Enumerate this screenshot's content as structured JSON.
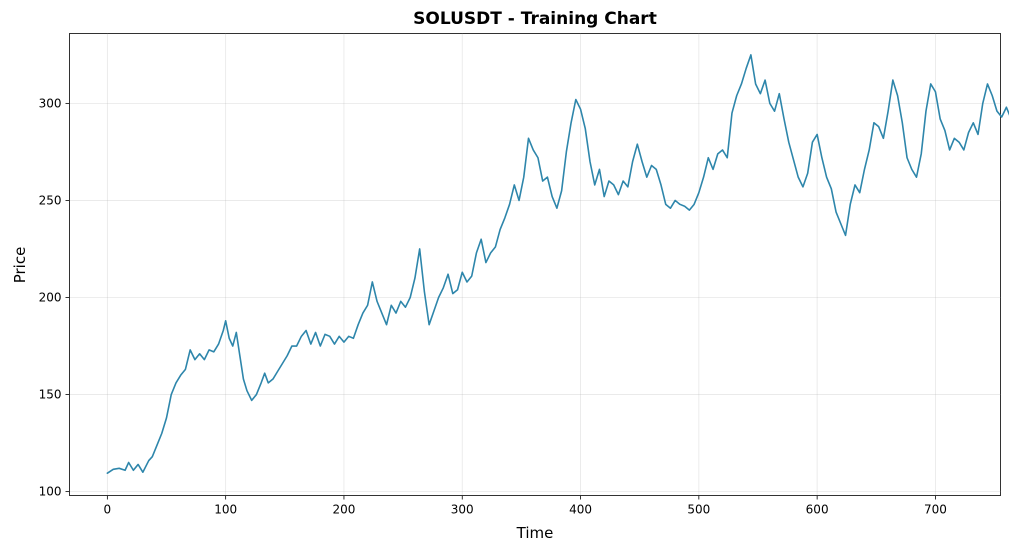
{
  "chart_data": {
    "type": "line",
    "title": "SOLUSDT - Training Chart",
    "xlabel": "Time",
    "ylabel": "Price",
    "xlim": [
      -32,
      755
    ],
    "ylim": [
      98,
      336
    ],
    "xticks": [
      0,
      100,
      200,
      300,
      400,
      500,
      600,
      700
    ],
    "yticks": [
      100,
      150,
      200,
      250,
      300
    ],
    "grid": true,
    "line_color": "#2e86ab",
    "series": [
      {
        "values": [
          [
            0,
            109.5
          ],
          [
            5,
            111.5
          ],
          [
            10,
            112
          ],
          [
            15,
            111
          ],
          [
            18,
            115
          ],
          [
            22,
            111
          ],
          [
            26,
            114
          ],
          [
            30,
            110
          ],
          [
            35,
            116
          ],
          [
            38,
            118
          ],
          [
            42,
            124
          ],
          [
            46,
            130
          ],
          [
            50,
            138
          ],
          [
            54,
            150
          ],
          [
            58,
            156
          ],
          [
            62,
            160
          ],
          [
            66,
            163
          ],
          [
            70,
            173
          ],
          [
            74,
            168
          ],
          [
            78,
            171
          ],
          [
            82,
            168
          ],
          [
            86,
            173
          ],
          [
            90,
            172
          ],
          [
            94,
            176
          ],
          [
            98,
            183
          ],
          [
            100,
            188
          ],
          [
            103,
            179
          ],
          [
            106,
            175
          ],
          [
            109,
            182
          ],
          [
            112,
            170
          ],
          [
            115,
            158
          ],
          [
            118,
            152
          ],
          [
            122,
            147
          ],
          [
            126,
            150
          ],
          [
            130,
            156
          ],
          [
            133,
            161
          ],
          [
            136,
            156
          ],
          [
            140,
            158
          ],
          [
            144,
            162
          ],
          [
            148,
            166
          ],
          [
            152,
            170
          ],
          [
            156,
            175
          ],
          [
            160,
            175
          ],
          [
            164,
            180
          ],
          [
            168,
            183
          ],
          [
            172,
            176
          ],
          [
            176,
            182
          ],
          [
            180,
            175
          ],
          [
            184,
            181
          ],
          [
            188,
            180
          ],
          [
            192,
            176
          ],
          [
            196,
            180
          ],
          [
            200,
            177
          ],
          [
            204,
            180
          ],
          [
            208,
            179
          ],
          [
            212,
            186
          ],
          [
            216,
            192
          ],
          [
            220,
            196
          ],
          [
            224,
            208
          ],
          [
            228,
            198
          ],
          [
            232,
            192
          ],
          [
            236,
            186
          ],
          [
            240,
            196
          ],
          [
            244,
            192
          ],
          [
            248,
            198
          ],
          [
            252,
            195
          ],
          [
            256,
            200
          ],
          [
            260,
            210
          ],
          [
            264,
            225
          ],
          [
            268,
            203
          ],
          [
            272,
            186
          ],
          [
            276,
            193
          ],
          [
            280,
            200
          ],
          [
            284,
            205
          ],
          [
            288,
            212
          ],
          [
            292,
            202
          ],
          [
            296,
            204
          ],
          [
            300,
            213
          ],
          [
            304,
            208
          ],
          [
            308,
            211
          ],
          [
            312,
            223
          ],
          [
            316,
            230
          ],
          [
            320,
            218
          ],
          [
            324,
            223
          ],
          [
            328,
            226
          ],
          [
            332,
            235
          ],
          [
            336,
            241
          ],
          [
            340,
            248
          ],
          [
            344,
            258
          ],
          [
            348,
            250
          ],
          [
            352,
            262
          ],
          [
            356,
            282
          ],
          [
            360,
            276
          ],
          [
            364,
            272
          ],
          [
            368,
            260
          ],
          [
            372,
            262
          ],
          [
            376,
            252
          ],
          [
            380,
            246
          ],
          [
            384,
            255
          ],
          [
            388,
            275
          ],
          [
            392,
            290
          ],
          [
            396,
            302
          ],
          [
            400,
            297
          ],
          [
            404,
            287
          ],
          [
            408,
            270
          ],
          [
            412,
            258
          ],
          [
            416,
            266
          ],
          [
            420,
            252
          ],
          [
            424,
            260
          ],
          [
            428,
            258
          ],
          [
            432,
            253
          ],
          [
            436,
            260
          ],
          [
            440,
            257
          ],
          [
            444,
            270
          ],
          [
            448,
            279
          ],
          [
            452,
            270
          ],
          [
            456,
            262
          ],
          [
            460,
            268
          ],
          [
            464,
            266
          ],
          [
            468,
            258
          ],
          [
            472,
            248
          ],
          [
            476,
            246
          ],
          [
            480,
            250
          ],
          [
            484,
            248
          ],
          [
            488,
            247
          ],
          [
            492,
            245
          ],
          [
            496,
            248
          ],
          [
            500,
            254
          ],
          [
            504,
            262
          ],
          [
            508,
            272
          ],
          [
            512,
            266
          ],
          [
            516,
            274
          ],
          [
            520,
            276
          ],
          [
            524,
            272
          ],
          [
            528,
            295
          ],
          [
            532,
            304
          ],
          [
            536,
            310
          ],
          [
            540,
            318
          ],
          [
            544,
            325
          ],
          [
            548,
            310
          ],
          [
            552,
            305
          ],
          [
            556,
            312
          ],
          [
            560,
            300
          ],
          [
            564,
            296
          ],
          [
            568,
            305
          ],
          [
            572,
            292
          ],
          [
            576,
            280
          ],
          [
            580,
            271
          ],
          [
            584,
            262
          ],
          [
            588,
            257
          ],
          [
            592,
            264
          ],
          [
            596,
            280
          ],
          [
            600,
            284
          ],
          [
            604,
            272
          ],
          [
            608,
            262
          ],
          [
            612,
            256
          ],
          [
            616,
            244
          ],
          [
            620,
            238
          ],
          [
            624,
            232
          ],
          [
            628,
            248
          ],
          [
            632,
            258
          ],
          [
            636,
            254
          ],
          [
            640,
            266
          ],
          [
            644,
            276
          ],
          [
            648,
            290
          ],
          [
            652,
            288
          ],
          [
            656,
            282
          ],
          [
            660,
            296
          ],
          [
            664,
            312
          ],
          [
            668,
            304
          ],
          [
            672,
            290
          ],
          [
            676,
            272
          ],
          [
            680,
            266
          ],
          [
            684,
            262
          ],
          [
            688,
            274
          ],
          [
            692,
            296
          ],
          [
            696,
            310
          ],
          [
            700,
            306
          ],
          [
            704,
            292
          ],
          [
            708,
            286
          ],
          [
            712,
            276
          ],
          [
            716,
            282
          ],
          [
            720,
            280
          ],
          [
            724,
            276
          ],
          [
            728,
            285
          ],
          [
            732,
            290
          ],
          [
            736,
            284
          ],
          [
            740,
            300
          ],
          [
            744,
            310
          ],
          [
            748,
            304
          ],
          [
            752,
            296
          ],
          [
            756,
            293
          ],
          [
            760,
            298
          ],
          [
            764,
            292
          ],
          [
            768,
            296
          ]
        ]
      }
    ]
  }
}
